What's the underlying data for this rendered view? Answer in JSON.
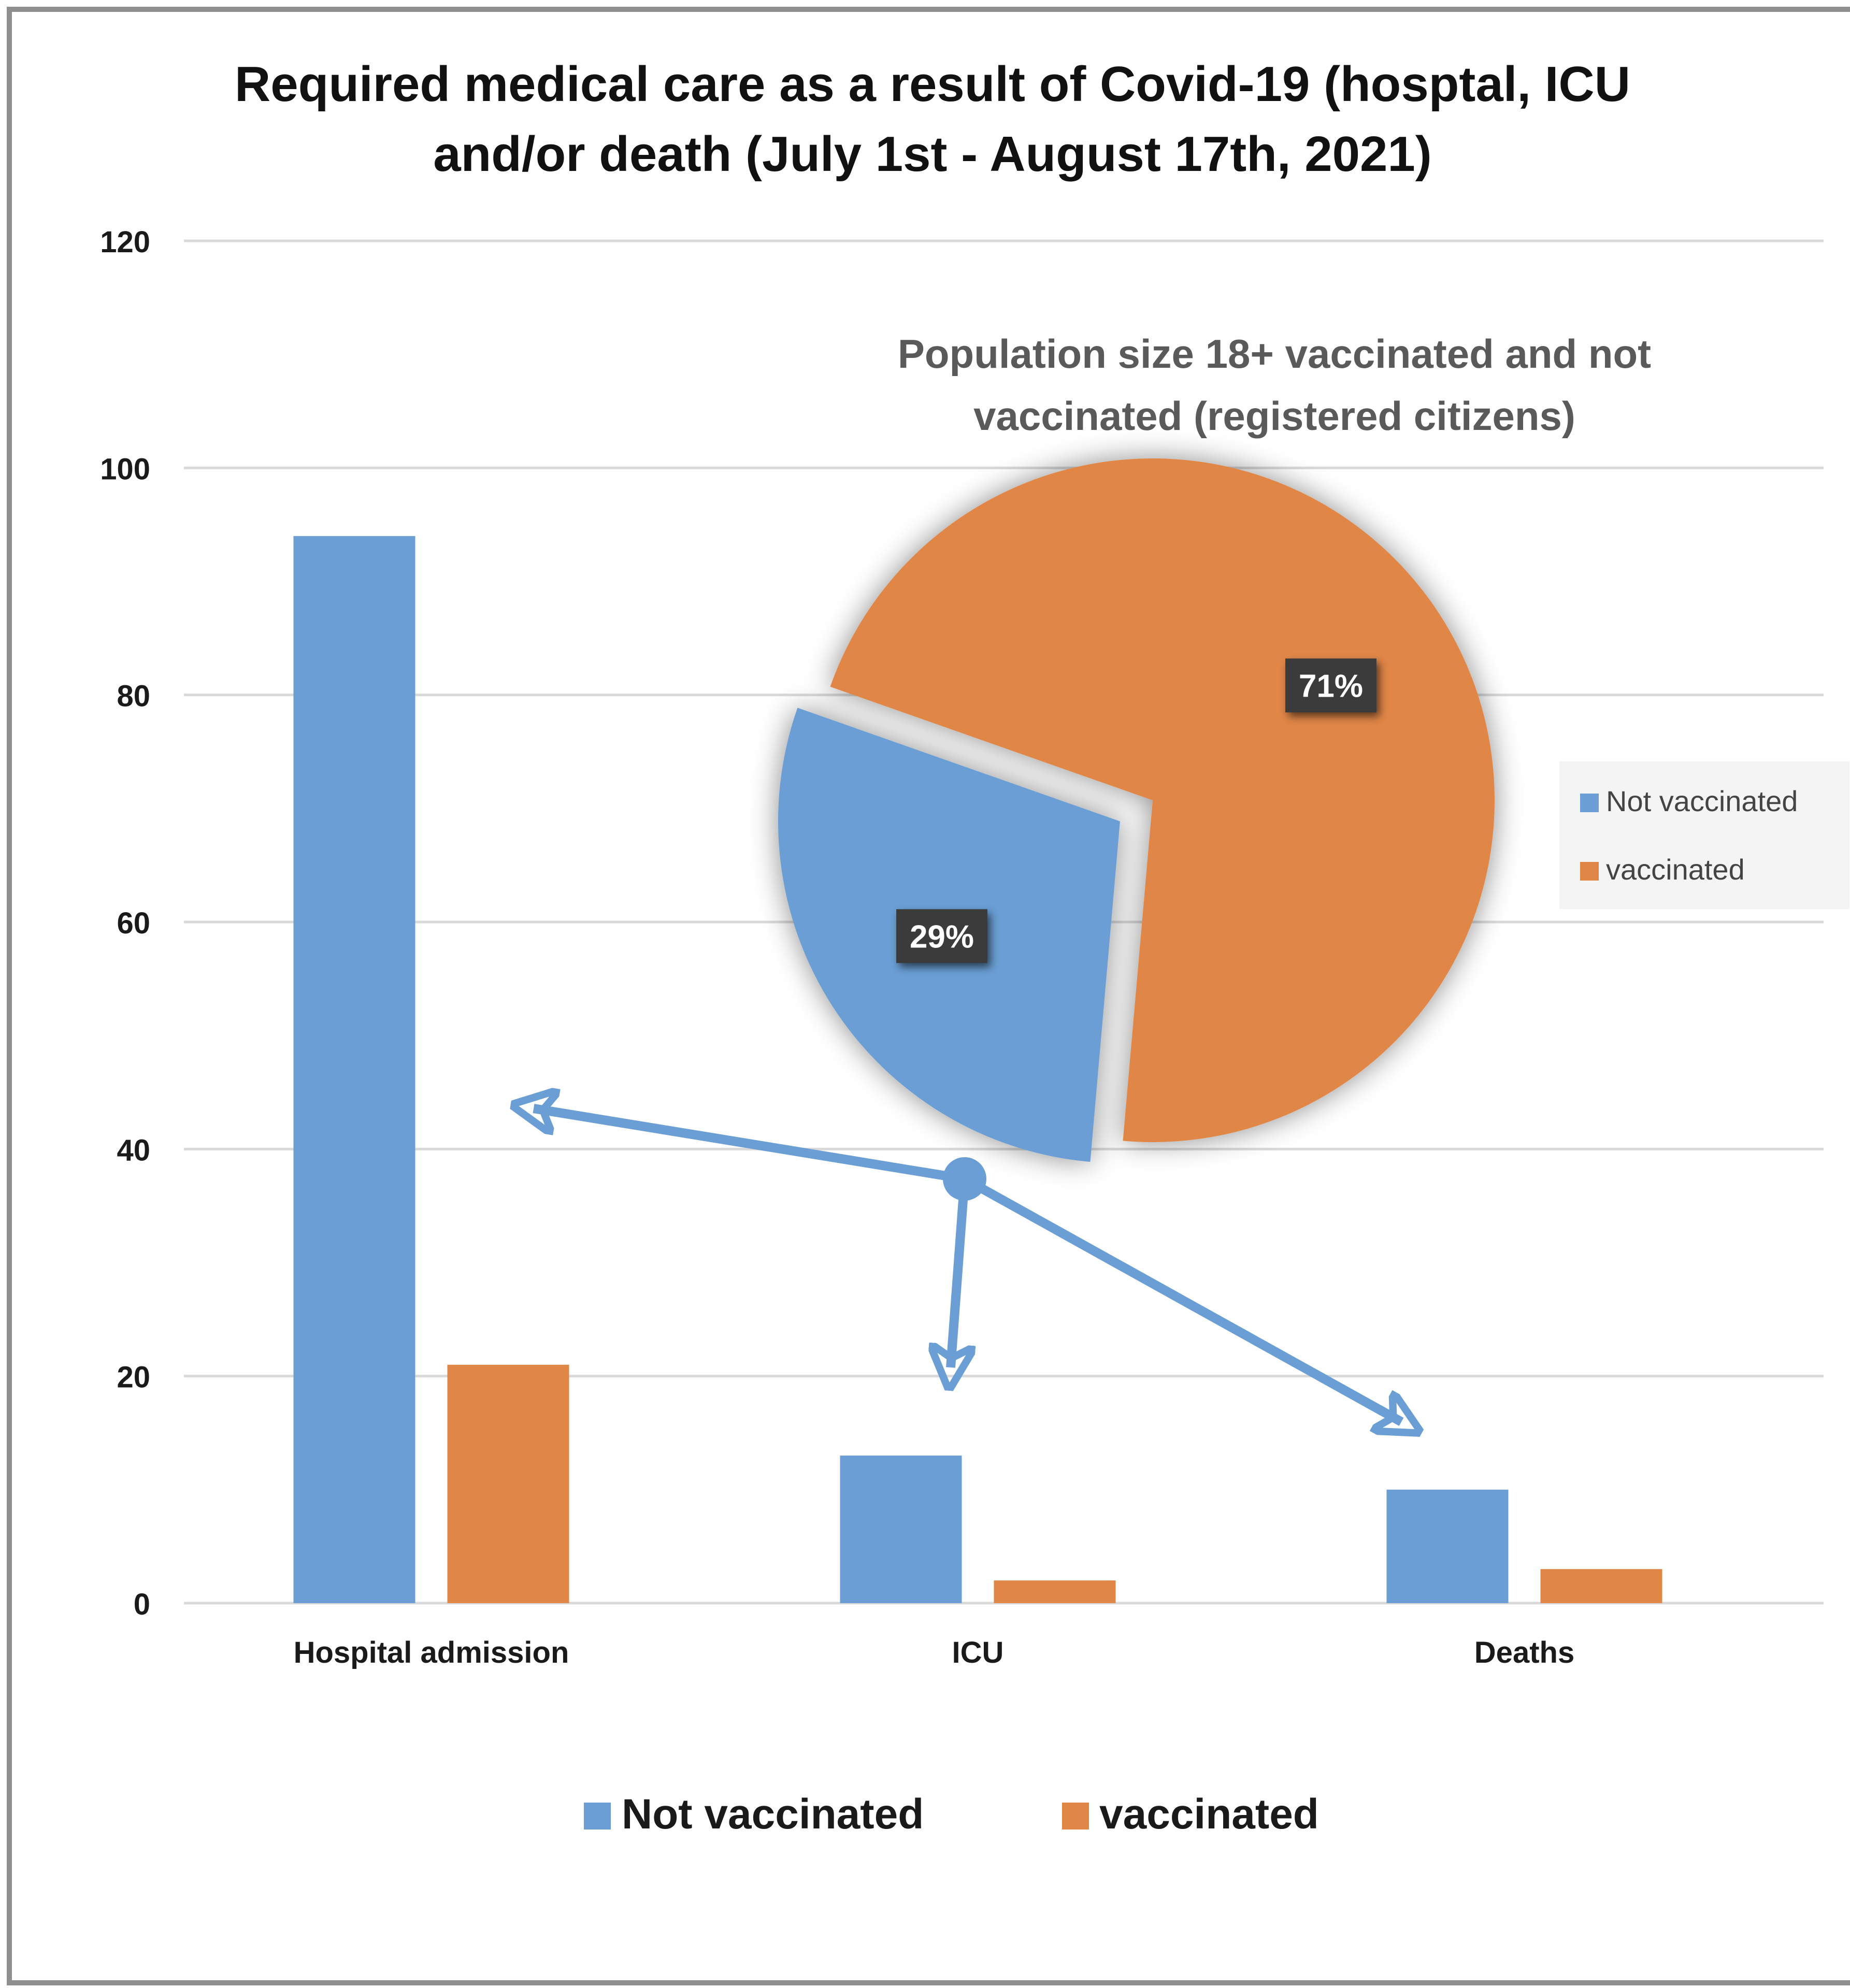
{
  "chart_data": [
    {
      "type": "bar",
      "title": "Required medical care as a result of Covid-19 (hosptal, ICU and/or death (July 1st - August 17th, 2021)",
      "title_lines": [
        "Required medical care as a result of Covid-19 (hosptal, ICU",
        "and/or death (July 1st - August 17th, 2021)"
      ],
      "categories": [
        "Hospital admission",
        "ICU",
        "Deaths"
      ],
      "series": [
        {
          "name": "Not vaccinated",
          "color": "#6a9ed4",
          "values": [
            94,
            13,
            10
          ]
        },
        {
          "name": "vaccinated",
          "color": "#e08646",
          "values": [
            21,
            2,
            3
          ]
        }
      ],
      "ylim": [
        0,
        120
      ],
      "yticks": [
        "0",
        "20",
        "40",
        "60",
        "80",
        "100",
        "120"
      ],
      "grid": true,
      "legend": "bottom"
    },
    {
      "type": "pie",
      "title_lines": [
        "Population size 18+ vaccinated and not",
        "vaccinated (registered citizens)"
      ],
      "slices": [
        {
          "name": "Not vaccinated",
          "value": 29,
          "label": "29%",
          "color": "#6a9ed4",
          "exploded": true
        },
        {
          "name": "vaccinated",
          "value": 71,
          "label": "71%",
          "color": "#e08646",
          "exploded": false
        }
      ],
      "legend": "right"
    }
  ]
}
